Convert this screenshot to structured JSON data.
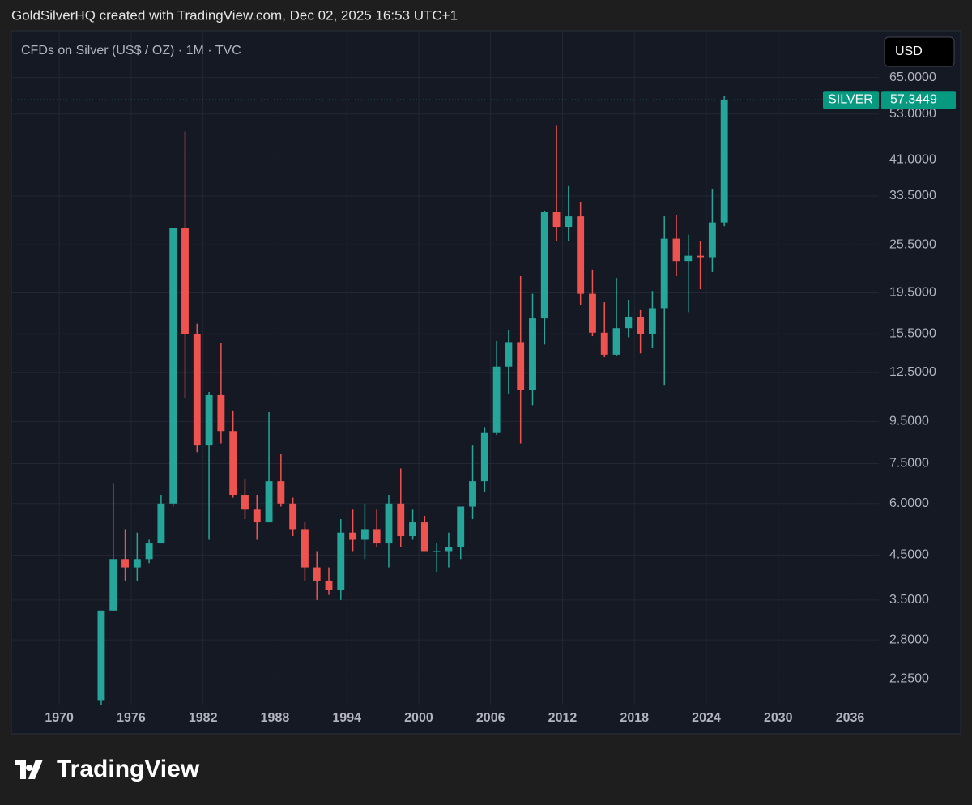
{
  "header": "GoldSilverHQ created with TradingView.com, Dec 02, 2025 16:53 UTC+1",
  "footer": {
    "logo": "TradingView"
  },
  "chart_data": {
    "type": "candlestick",
    "title": "CFDs on Silver (US$ / OZ) · 1M · TVC",
    "currency": "USD",
    "series_name": "SILVER",
    "last_price": 57.3449,
    "log_scale": true,
    "grid": true,
    "up_color": "#26a69a",
    "down_color": "#ef5350",
    "x": [
      1973,
      1974,
      1975,
      1976,
      1977,
      1978,
      1979,
      1980,
      1981,
      1982,
      1983,
      1984,
      1985,
      1986,
      1987,
      1988,
      1989,
      1990,
      1991,
      1992,
      1993,
      1994,
      1995,
      1996,
      1997,
      1998,
      1999,
      2000,
      2001,
      2002,
      2003,
      2004,
      2005,
      2006,
      2007,
      2008,
      2009,
      2010,
      2011,
      2012,
      2013,
      2014,
      2015,
      2016,
      2017,
      2018,
      2019,
      2020,
      2021,
      2022,
      2023,
      2024,
      2025
    ],
    "open": [
      2.0,
      3.3,
      4.4,
      4.2,
      4.4,
      4.8,
      6.0,
      28,
      15.5,
      8.3,
      11.0,
      9.0,
      6.3,
      5.8,
      5.4,
      6.8,
      6.0,
      5.2,
      4.2,
      3.9,
      3.7,
      5.1,
      4.9,
      5.2,
      4.8,
      6.0,
      5.0,
      5.4,
      4.6,
      4.6,
      4.7,
      5.9,
      6.8,
      8.9,
      12.9,
      14.8,
      11.3,
      16.9,
      30.6,
      28.2,
      29.9,
      19.4,
      15.6,
      13.8,
      16.0,
      17.0,
      15.5,
      17.9,
      26.4,
      23.3,
      24.0,
      23.8,
      28.9
    ],
    "high": [
      3.3,
      6.7,
      5.2,
      5.1,
      4.9,
      6.3,
      28,
      48,
      16.4,
      11.2,
      14.7,
      10.1,
      6.9,
      6.3,
      10.0,
      7.9,
      6.2,
      5.4,
      4.6,
      4.2,
      5.5,
      5.8,
      6.0,
      5.8,
      6.3,
      7.3,
      5.8,
      5.6,
      4.8,
      5.1,
      5.9,
      8.3,
      9.2,
      14.9,
      15.8,
      21.4,
      19.4,
      30.9,
      49.8,
      35.4,
      32.4,
      22.2,
      18.5,
      21.2,
      18.7,
      17.7,
      19.7,
      29.9,
      30.1,
      27.0,
      26.1,
      34.9,
      58.5
    ],
    "low": [
      1.95,
      3.3,
      3.9,
      3.9,
      4.3,
      4.8,
      5.9,
      10.8,
      8.0,
      4.9,
      8.4,
      6.2,
      5.5,
      4.9,
      5.4,
      5.9,
      5.0,
      3.9,
      3.5,
      3.6,
      3.5,
      4.6,
      4.4,
      4.7,
      4.2,
      4.7,
      4.9,
      4.6,
      4.1,
      4.2,
      4.4,
      5.5,
      6.4,
      8.8,
      11.1,
      8.4,
      10.4,
      14.6,
      26.1,
      26.1,
      18.2,
      15.3,
      13.6,
      13.7,
      15.2,
      13.9,
      14.3,
      11.6,
      21.4,
      17.5,
      19.9,
      21.9,
      28.3
    ],
    "close": [
      3.3,
      4.4,
      4.2,
      4.4,
      4.8,
      6.0,
      28,
      15.5,
      8.3,
      11.0,
      9.0,
      6.3,
      5.8,
      5.4,
      6.8,
      6.0,
      5.2,
      4.2,
      3.9,
      3.7,
      5.1,
      4.9,
      5.2,
      4.8,
      6.0,
      5.0,
      5.4,
      4.6,
      4.6,
      4.7,
      5.9,
      6.8,
      8.9,
      12.9,
      14.8,
      11.3,
      16.9,
      30.6,
      28.2,
      29.9,
      19.4,
      15.6,
      13.8,
      16.0,
      17.0,
      15.5,
      17.9,
      26.4,
      23.3,
      24.0,
      23.8,
      28.9,
      57.3449
    ],
    "xlim": [
      1966,
      2038.4
    ],
    "xticks": [
      1970,
      1976,
      1982,
      1988,
      1994,
      2000,
      2006,
      2012,
      2018,
      2024,
      2030,
      2036
    ],
    "ylim": [
      1.95,
      84
    ],
    "yticks": [
      {
        "value": 2.25,
        "label": "2.2500"
      },
      {
        "value": 2.8,
        "label": "2.8000"
      },
      {
        "value": 3.5,
        "label": "3.5000"
      },
      {
        "value": 4.5,
        "label": "4.5000"
      },
      {
        "value": 6,
        "label": "6.0000"
      },
      {
        "value": 7.5,
        "label": "7.5000"
      },
      {
        "value": 9.5,
        "label": "9.5000"
      },
      {
        "value": 12.5,
        "label": "12.5000"
      },
      {
        "value": 15.5,
        "label": "15.5000"
      },
      {
        "value": 19.5,
        "label": "19.5000"
      },
      {
        "value": 25.5,
        "label": "25.5000"
      },
      {
        "value": 33.5,
        "label": "33.5000"
      },
      {
        "value": 41,
        "label": "41.0000"
      },
      {
        "value": 53,
        "label": "53.0000"
      },
      {
        "value": 65,
        "label": "65.0000"
      }
    ]
  }
}
